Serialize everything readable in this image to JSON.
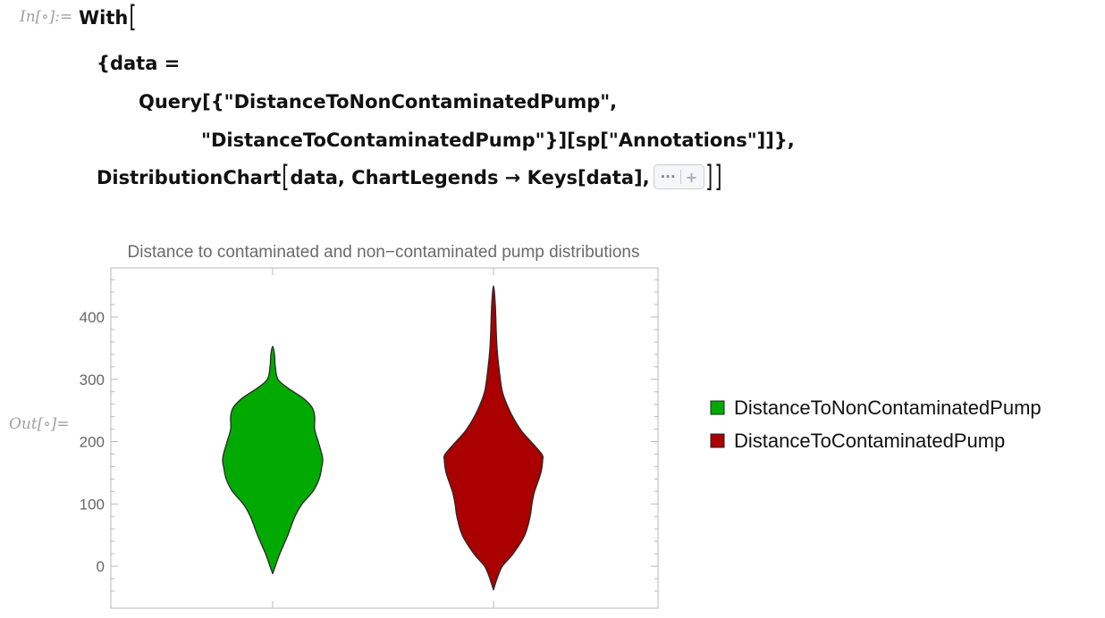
{
  "input_label": "In[∘]:=",
  "output_label": "Out[∘]=",
  "code": {
    "line1": "With",
    "line2": "{data =",
    "line3": "Query[{\"DistanceToNonContaminatedPump\",",
    "line4": "\"DistanceToContaminatedPump\"}][sp[\"Annotations\"]]},",
    "line5a": "DistributionChart",
    "line5b": "data, ChartLegends → Keys[data],",
    "options_icon": "ellipsis-icon",
    "options_text": "···",
    "options_plus": "+"
  },
  "colors": {
    "green": "#00aa00",
    "red": "#aa0000",
    "frame": "#b8b8b8",
    "tick_text": "#666666",
    "title_text": "#6a6a6a"
  },
  "chart_data": {
    "type": "violin",
    "title": "Distance to contaminated and non−contaminated pump distributions",
    "ylim": [
      -40,
      470
    ],
    "yticks": [
      0,
      100,
      200,
      300,
      400
    ],
    "grid": false,
    "legend_position": "right",
    "series": [
      {
        "name": "DistanceToNonContaminatedPump",
        "color": "#00aa00",
        "profile": [
          [
            -12,
            0
          ],
          [
            0,
            3
          ],
          [
            20,
            8
          ],
          [
            50,
            17
          ],
          [
            80,
            25
          ],
          [
            100,
            33
          ],
          [
            120,
            45
          ],
          [
            140,
            52
          ],
          [
            160,
            55
          ],
          [
            170,
            56
          ],
          [
            180,
            55
          ],
          [
            200,
            51
          ],
          [
            220,
            47
          ],
          [
            240,
            47
          ],
          [
            255,
            44
          ],
          [
            270,
            34
          ],
          [
            285,
            18
          ],
          [
            300,
            6
          ],
          [
            320,
            3
          ],
          [
            340,
            2
          ],
          [
            353,
            0
          ]
        ]
      },
      {
        "name": "DistanceToContaminatedPump",
        "color": "#aa0000",
        "profile": [
          [
            -38,
            0
          ],
          [
            -20,
            4
          ],
          [
            0,
            10
          ],
          [
            20,
            22
          ],
          [
            50,
            35
          ],
          [
            80,
            41
          ],
          [
            100,
            43
          ],
          [
            120,
            46
          ],
          [
            150,
            53
          ],
          [
            170,
            55
          ],
          [
            180,
            54
          ],
          [
            200,
            42
          ],
          [
            220,
            30
          ],
          [
            250,
            18
          ],
          [
            280,
            10
          ],
          [
            320,
            6
          ],
          [
            350,
            4
          ],
          [
            380,
            3
          ],
          [
            420,
            2
          ],
          [
            450,
            0
          ]
        ]
      }
    ]
  }
}
